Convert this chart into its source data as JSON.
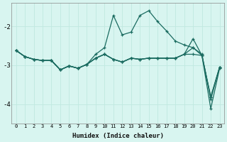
{
  "xlabel": "Humidex (Indice chaleur)",
  "bg_color": "#d8f5f0",
  "grid_color": "#c0e8e0",
  "line_color": "#1a6b60",
  "x": [
    0,
    1,
    2,
    3,
    4,
    5,
    6,
    7,
    8,
    9,
    10,
    11,
    12,
    13,
    14,
    15,
    16,
    17,
    18,
    19,
    20,
    21,
    22,
    23
  ],
  "line1": [
    -2.62,
    -2.78,
    -2.85,
    -2.88,
    -2.88,
    -3.12,
    -3.02,
    -3.08,
    -2.98,
    -2.72,
    -2.55,
    -1.72,
    -2.22,
    -2.15,
    -1.72,
    -1.6,
    -1.88,
    -2.12,
    -2.38,
    -2.48,
    -2.55,
    -2.72,
    -3.88,
    -3.05
  ],
  "line2": [
    -2.62,
    -2.78,
    -2.85,
    -2.88,
    -2.88,
    -3.12,
    -3.02,
    -3.08,
    -2.98,
    -2.82,
    -2.72,
    -2.85,
    -2.92,
    -2.82,
    -2.85,
    -2.82,
    -2.82,
    -2.82,
    -2.82,
    -2.72,
    -2.55,
    -2.75,
    -3.82,
    -3.05
  ],
  "line3": [
    -2.62,
    -2.78,
    -2.85,
    -2.88,
    -2.88,
    -3.12,
    -3.02,
    -3.08,
    -2.98,
    -2.82,
    -2.72,
    -2.85,
    -2.92,
    -2.82,
    -2.85,
    -2.82,
    -2.82,
    -2.82,
    -2.82,
    -2.72,
    -2.32,
    -2.75,
    -3.82,
    -3.05
  ],
  "line4": [
    -2.62,
    -2.78,
    -2.85,
    -2.88,
    -2.88,
    -3.12,
    -3.02,
    -3.08,
    -2.98,
    -2.82,
    -2.72,
    -2.85,
    -2.92,
    -2.82,
    -2.85,
    -2.82,
    -2.82,
    -2.82,
    -2.82,
    -2.72,
    -2.72,
    -2.75,
    -4.12,
    -3.08
  ],
  "ylim": [
    -4.5,
    -1.4
  ],
  "yticks": [
    -4,
    -3,
    -2
  ],
  "xlim": [
    -0.5,
    23.5
  ]
}
